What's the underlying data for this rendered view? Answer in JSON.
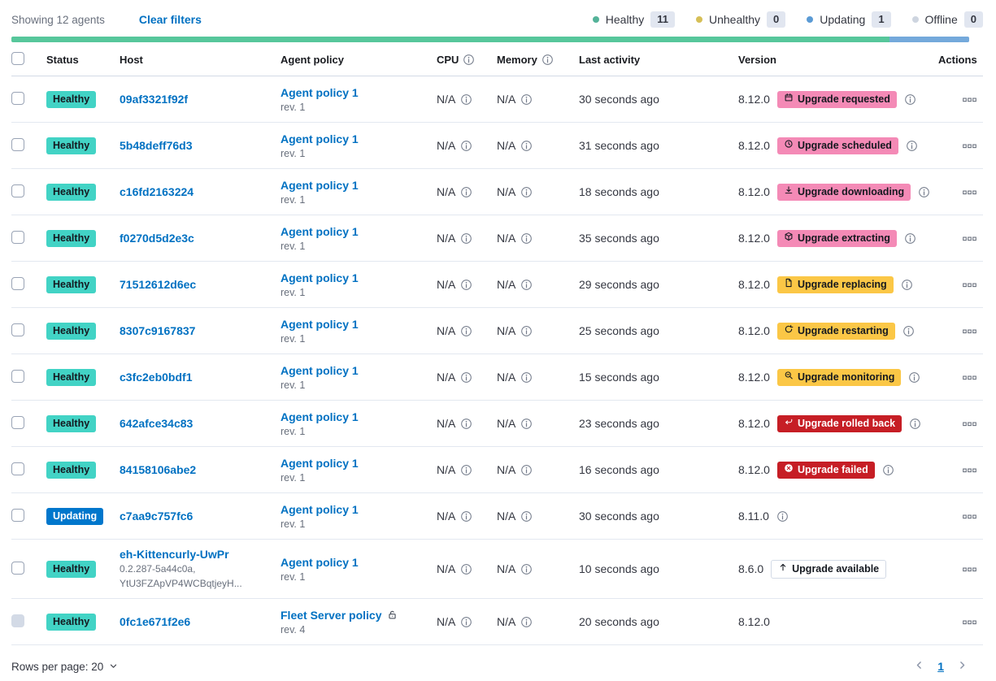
{
  "toolbar": {
    "showing_text": "Showing 12 agents",
    "clear_filters_label": "Clear filters",
    "legend": [
      {
        "label": "Healthy",
        "count": "11",
        "dot_color": "#54B399"
      },
      {
        "label": "Unhealthy",
        "count": "0",
        "dot_color": "#D6BF57"
      },
      {
        "label": "Updating",
        "count": "1",
        "dot_color": "#5B9BD5"
      },
      {
        "label": "Offline",
        "count": "0",
        "dot_color": "#CED5E0"
      }
    ]
  },
  "health_bar": {
    "segments": [
      {
        "status": "healthy",
        "color": "#57C79B",
        "fraction": 0.9167
      },
      {
        "status": "updating",
        "color": "#74A9DB",
        "fraction": 0.0833
      }
    ]
  },
  "table": {
    "columns": [
      {
        "id": "select",
        "label": ""
      },
      {
        "id": "status",
        "label": "Status"
      },
      {
        "id": "host",
        "label": "Host"
      },
      {
        "id": "policy",
        "label": "Agent policy"
      },
      {
        "id": "cpu",
        "label": "CPU",
        "info": true
      },
      {
        "id": "memory",
        "label": "Memory",
        "info": true
      },
      {
        "id": "last_activity",
        "label": "Last activity"
      },
      {
        "id": "version",
        "label": "Version"
      },
      {
        "id": "actions",
        "label": "Actions",
        "align": "right"
      }
    ],
    "rows": [
      {
        "status": {
          "label": "Healthy",
          "variant": "healthy"
        },
        "host": {
          "name": "09af3321f92f"
        },
        "policy": {
          "name": "Agent policy 1",
          "rev": "rev. 1"
        },
        "cpu": "N/A",
        "memory": "N/A",
        "last_activity": "30 seconds ago",
        "version": "8.12.0",
        "upgrade": {
          "label": "Upgrade requested",
          "variant": "pink",
          "icon": "calendar-icon"
        },
        "version_info": true
      },
      {
        "status": {
          "label": "Healthy",
          "variant": "healthy"
        },
        "host": {
          "name": "5b48deff76d3"
        },
        "policy": {
          "name": "Agent policy 1",
          "rev": "rev. 1"
        },
        "cpu": "N/A",
        "memory": "N/A",
        "last_activity": "31 seconds ago",
        "version": "8.12.0",
        "upgrade": {
          "label": "Upgrade scheduled",
          "variant": "pink",
          "icon": "clock-icon"
        },
        "version_info": true
      },
      {
        "status": {
          "label": "Healthy",
          "variant": "healthy"
        },
        "host": {
          "name": "c16fd2163224"
        },
        "policy": {
          "name": "Agent policy 1",
          "rev": "rev. 1"
        },
        "cpu": "N/A",
        "memory": "N/A",
        "last_activity": "18 seconds ago",
        "version": "8.12.0",
        "upgrade": {
          "label": "Upgrade downloading",
          "variant": "pink",
          "icon": "download-icon"
        },
        "version_info": true
      },
      {
        "status": {
          "label": "Healthy",
          "variant": "healthy"
        },
        "host": {
          "name": "f0270d5d2e3c"
        },
        "policy": {
          "name": "Agent policy 1",
          "rev": "rev. 1"
        },
        "cpu": "N/A",
        "memory": "N/A",
        "last_activity": "35 seconds ago",
        "version": "8.12.0",
        "upgrade": {
          "label": "Upgrade extracting",
          "variant": "pink",
          "icon": "package-icon"
        },
        "version_info": true
      },
      {
        "status": {
          "label": "Healthy",
          "variant": "healthy"
        },
        "host": {
          "name": "71512612d6ec"
        },
        "policy": {
          "name": "Agent policy 1",
          "rev": "rev. 1"
        },
        "cpu": "N/A",
        "memory": "N/A",
        "last_activity": "29 seconds ago",
        "version": "8.12.0",
        "upgrade": {
          "label": "Upgrade replacing",
          "variant": "warning",
          "icon": "document-icon"
        },
        "version_info": true
      },
      {
        "status": {
          "label": "Healthy",
          "variant": "healthy"
        },
        "host": {
          "name": "8307c9167837"
        },
        "policy": {
          "name": "Agent policy 1",
          "rev": "rev. 1"
        },
        "cpu": "N/A",
        "memory": "N/A",
        "last_activity": "25 seconds ago",
        "version": "8.12.0",
        "upgrade": {
          "label": "Upgrade restarting",
          "variant": "warning",
          "icon": "refresh-icon"
        },
        "version_info": true
      },
      {
        "status": {
          "label": "Healthy",
          "variant": "healthy"
        },
        "host": {
          "name": "c3fc2eb0bdf1"
        },
        "policy": {
          "name": "Agent policy 1",
          "rev": "rev. 1"
        },
        "cpu": "N/A",
        "memory": "N/A",
        "last_activity": "15 seconds ago",
        "version": "8.12.0",
        "upgrade": {
          "label": "Upgrade monitoring",
          "variant": "warning",
          "icon": "inspect-icon"
        },
        "version_info": true
      },
      {
        "status": {
          "label": "Healthy",
          "variant": "healthy"
        },
        "host": {
          "name": "642afce34c83"
        },
        "policy": {
          "name": "Agent policy 1",
          "rev": "rev. 1"
        },
        "cpu": "N/A",
        "memory": "N/A",
        "last_activity": "23 seconds ago",
        "version": "8.12.0",
        "upgrade": {
          "label": "Upgrade rolled back",
          "variant": "danger",
          "icon": "return-icon"
        },
        "version_info": true
      },
      {
        "status": {
          "label": "Healthy",
          "variant": "healthy"
        },
        "host": {
          "name": "84158106abe2"
        },
        "policy": {
          "name": "Agent policy 1",
          "rev": "rev. 1"
        },
        "cpu": "N/A",
        "memory": "N/A",
        "last_activity": "16 seconds ago",
        "version": "8.12.0",
        "upgrade": {
          "label": "Upgrade failed",
          "variant": "danger",
          "icon": "cross-circle-icon"
        },
        "version_info": true
      },
      {
        "status": {
          "label": "Updating",
          "variant": "updating"
        },
        "host": {
          "name": "c7aa9c757fc6"
        },
        "policy": {
          "name": "Agent policy 1",
          "rev": "rev. 1"
        },
        "cpu": "N/A",
        "memory": "N/A",
        "last_activity": "30 seconds ago",
        "version": "8.11.0",
        "upgrade": null,
        "version_info": true
      },
      {
        "status": {
          "label": "Healthy",
          "variant": "healthy"
        },
        "host": {
          "name": "eh-Kittencurly-UwPr",
          "sublines": [
            "0.2.287-5a44c0a,",
            "YtU3FZApVP4WCBqtjeyH..."
          ]
        },
        "policy": {
          "name": "Agent policy 1",
          "rev": "rev. 1"
        },
        "cpu": "N/A",
        "memory": "N/A",
        "last_activity": "10 seconds ago",
        "version": "8.6.0",
        "upgrade": {
          "label": "Upgrade available",
          "variant": "hollow",
          "icon": "up-arrow-icon"
        },
        "version_info": false
      },
      {
        "status": {
          "label": "Healthy",
          "variant": "healthy"
        },
        "host": {
          "name": "0fc1e671f2e6"
        },
        "policy": {
          "name": "Fleet Server policy",
          "rev": "rev. 4",
          "locked": true
        },
        "cpu": "N/A",
        "memory": "N/A",
        "last_activity": "20 seconds ago",
        "version": "8.12.0",
        "upgrade": null,
        "version_info": false,
        "checkbox_disabled": true
      }
    ]
  },
  "footer": {
    "rows_per_page_label": "Rows per page: 20",
    "current_page": "1"
  },
  "theme": {
    "link_color": "#0071C2",
    "healthy_badge": "#42D3C5",
    "updating_badge": "#0077CC",
    "pink_badge": "#F48AB6",
    "warning_badge": "#FBC746",
    "danger_badge": "#C61E25"
  }
}
